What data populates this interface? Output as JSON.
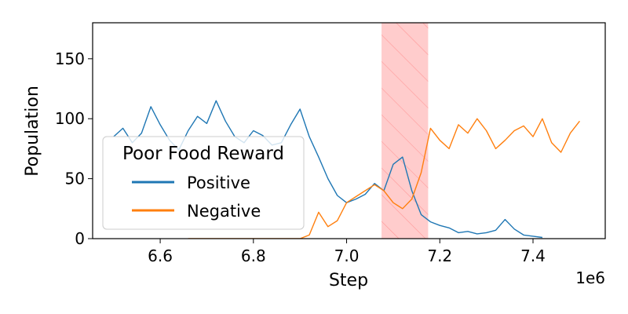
{
  "chart_data": {
    "type": "line",
    "xlabel": "Step",
    "ylabel": "Population",
    "x_offset_label": "1e6",
    "xlim": [
      6.455,
      7.555
    ],
    "ylim": [
      0,
      180
    ],
    "x_ticks": [
      6.6,
      6.8,
      7.0,
      7.2,
      7.4
    ],
    "x_tick_labels": [
      "6.6",
      "6.8",
      "7.0",
      "7.2",
      "7.4"
    ],
    "y_ticks": [
      0,
      50,
      100,
      150
    ],
    "y_tick_labels": [
      "0",
      "50",
      "100",
      "150"
    ],
    "grid": false,
    "legend": {
      "title": "Poor Food Reward",
      "placement": "center-left",
      "entries": [
        "Positive",
        "Negative"
      ]
    },
    "shaded_region": {
      "x_start": 7.075,
      "x_end": 7.175,
      "color": "#ff9999",
      "hatch": "/"
    },
    "series": [
      {
        "name": "Positive",
        "color": "#1f77b4",
        "x": [
          6.5,
          6.52,
          6.54,
          6.56,
          6.58,
          6.6,
          6.62,
          6.64,
          6.66,
          6.68,
          6.7,
          6.72,
          6.74,
          6.76,
          6.78,
          6.8,
          6.82,
          6.84,
          6.86,
          6.88,
          6.9,
          6.92,
          6.94,
          6.96,
          6.98,
          7.0,
          7.02,
          7.04,
          7.06,
          7.08,
          7.1,
          7.12,
          7.14,
          7.16,
          7.18,
          7.2,
          7.22,
          7.24,
          7.26,
          7.28,
          7.3,
          7.32,
          7.34,
          7.36,
          7.38,
          7.4,
          7.42
        ],
        "y": [
          85,
          92,
          80,
          88,
          110,
          95,
          82,
          74,
          90,
          102,
          96,
          115,
          98,
          85,
          80,
          90,
          86,
          78,
          80,
          95,
          108,
          85,
          68,
          50,
          36,
          30,
          33,
          37,
          46,
          40,
          62,
          68,
          40,
          20,
          14,
          11,
          9,
          5,
          6,
          4,
          5,
          7,
          16,
          8,
          3,
          2,
          1
        ]
      },
      {
        "name": "Negative",
        "color": "#ff7f0e",
        "x": [
          6.66,
          6.7,
          6.75,
          6.8,
          6.85,
          6.9,
          6.92,
          6.94,
          6.96,
          6.98,
          7.0,
          7.02,
          7.04,
          7.06,
          7.08,
          7.1,
          7.12,
          7.14,
          7.16,
          7.18,
          7.2,
          7.22,
          7.24,
          7.26,
          7.28,
          7.3,
          7.32,
          7.34,
          7.36,
          7.38,
          7.4,
          7.42,
          7.44,
          7.46,
          7.48,
          7.5
        ],
        "y": [
          0,
          0,
          0,
          0,
          0,
          0,
          3,
          22,
          10,
          15,
          30,
          35,
          40,
          45,
          40,
          30,
          25,
          33,
          55,
          92,
          82,
          75,
          95,
          88,
          100,
          90,
          75,
          82,
          90,
          94,
          85,
          100,
          80,
          72,
          88,
          98
        ]
      }
    ]
  }
}
